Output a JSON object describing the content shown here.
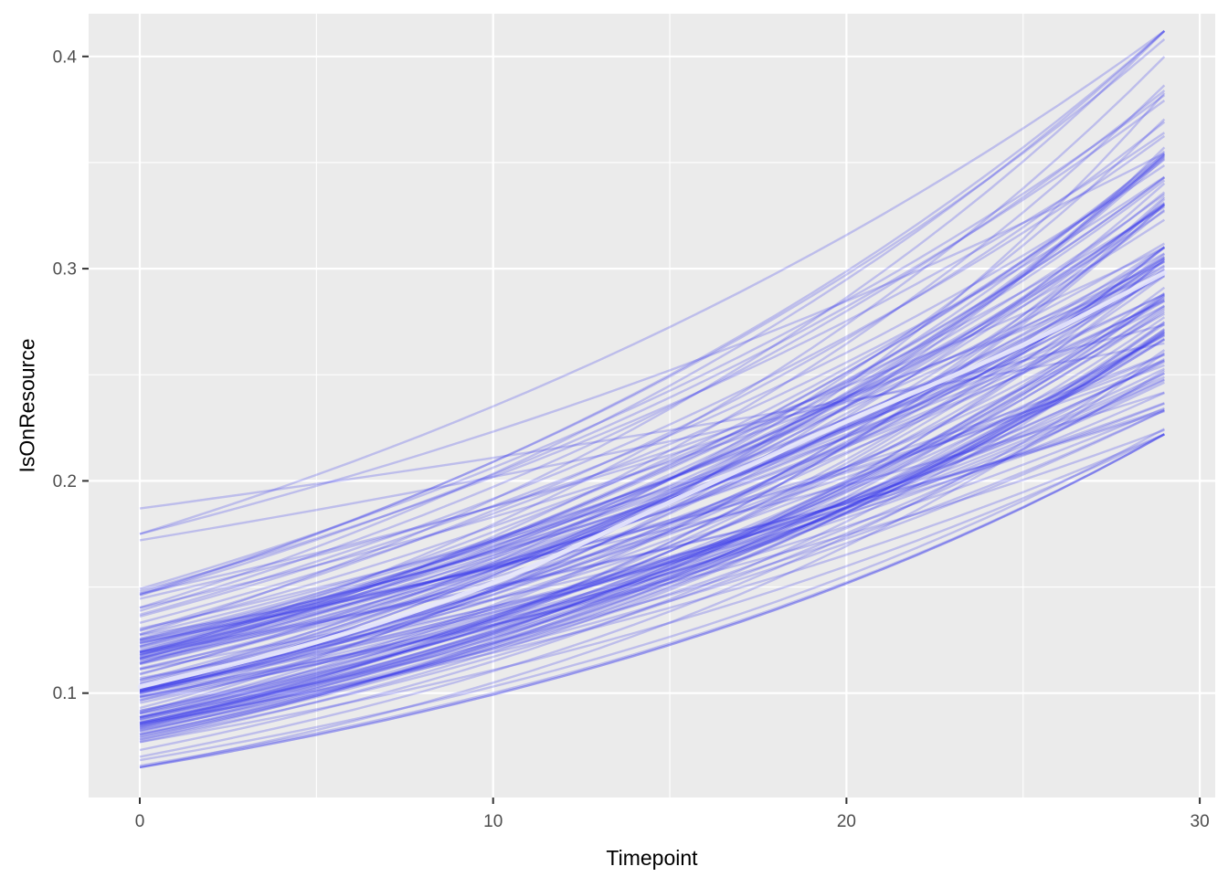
{
  "figure": {
    "background": "#FFFFFF",
    "panel_background": "#EBEBEB",
    "grid_color": "#FFFFFF",
    "tick_mark_color": "#333333",
    "tick_label_color": "#4D4D4D",
    "axis_title_color": "#000000"
  },
  "chart_data": {
    "type": "line",
    "title": "",
    "xlabel": "Timepoint",
    "ylabel": "IsOnResource",
    "xlim": [
      -1.45,
      30.45
    ],
    "ylim": [
      0.051,
      0.421
    ],
    "x_major_ticks": [
      0,
      10,
      20,
      30
    ],
    "x_minor_ticks": [
      5,
      15,
      25
    ],
    "y_major_ticks": [
      0.1,
      0.2,
      0.3,
      0.4
    ],
    "y_minor_ticks": [
      0.15,
      0.25,
      0.35
    ],
    "x_tick_labels": [
      "0",
      "10",
      "20",
      "30"
    ],
    "y_tick_labels": [
      "0.1",
      "0.2",
      "0.3",
      "0.4"
    ],
    "grid": true,
    "legend": "none",
    "series_description": "Bundle of individual fitted growth trajectories (posterior draws) of IsOnResource probability over Timepoint 0-29, all rising with slight upward curvature",
    "spaghetti": {
      "n_lines": 140,
      "t_start": 0,
      "t_end": 29,
      "start_mean": 0.105,
      "start_log_sd": 0.22,
      "start_range": [
        0.065,
        0.19
      ],
      "end_range": [
        0.225,
        0.405
      ],
      "growth_rate_mean": 0.036,
      "growth_rate_sd": 0.0045,
      "shrinkage": 0.5,
      "outliers": [
        {
          "start": 0.187,
          "rate": 0.012
        },
        {
          "start": 0.172,
          "rate": 0.016
        }
      ],
      "color": "#3434EA",
      "opacity": 0.25,
      "width": 2.4,
      "seed": 1337
    },
    "mean_line": {
      "points": [
        [
          0,
          0.103
        ],
        [
          5,
          0.124
        ],
        [
          10,
          0.152
        ],
        [
          15,
          0.19
        ],
        [
          20,
          0.228
        ],
        [
          25,
          0.264
        ],
        [
          29,
          0.298
        ]
      ],
      "color": "#E6E6FB",
      "width": 5,
      "opacity": 0.93
    }
  }
}
